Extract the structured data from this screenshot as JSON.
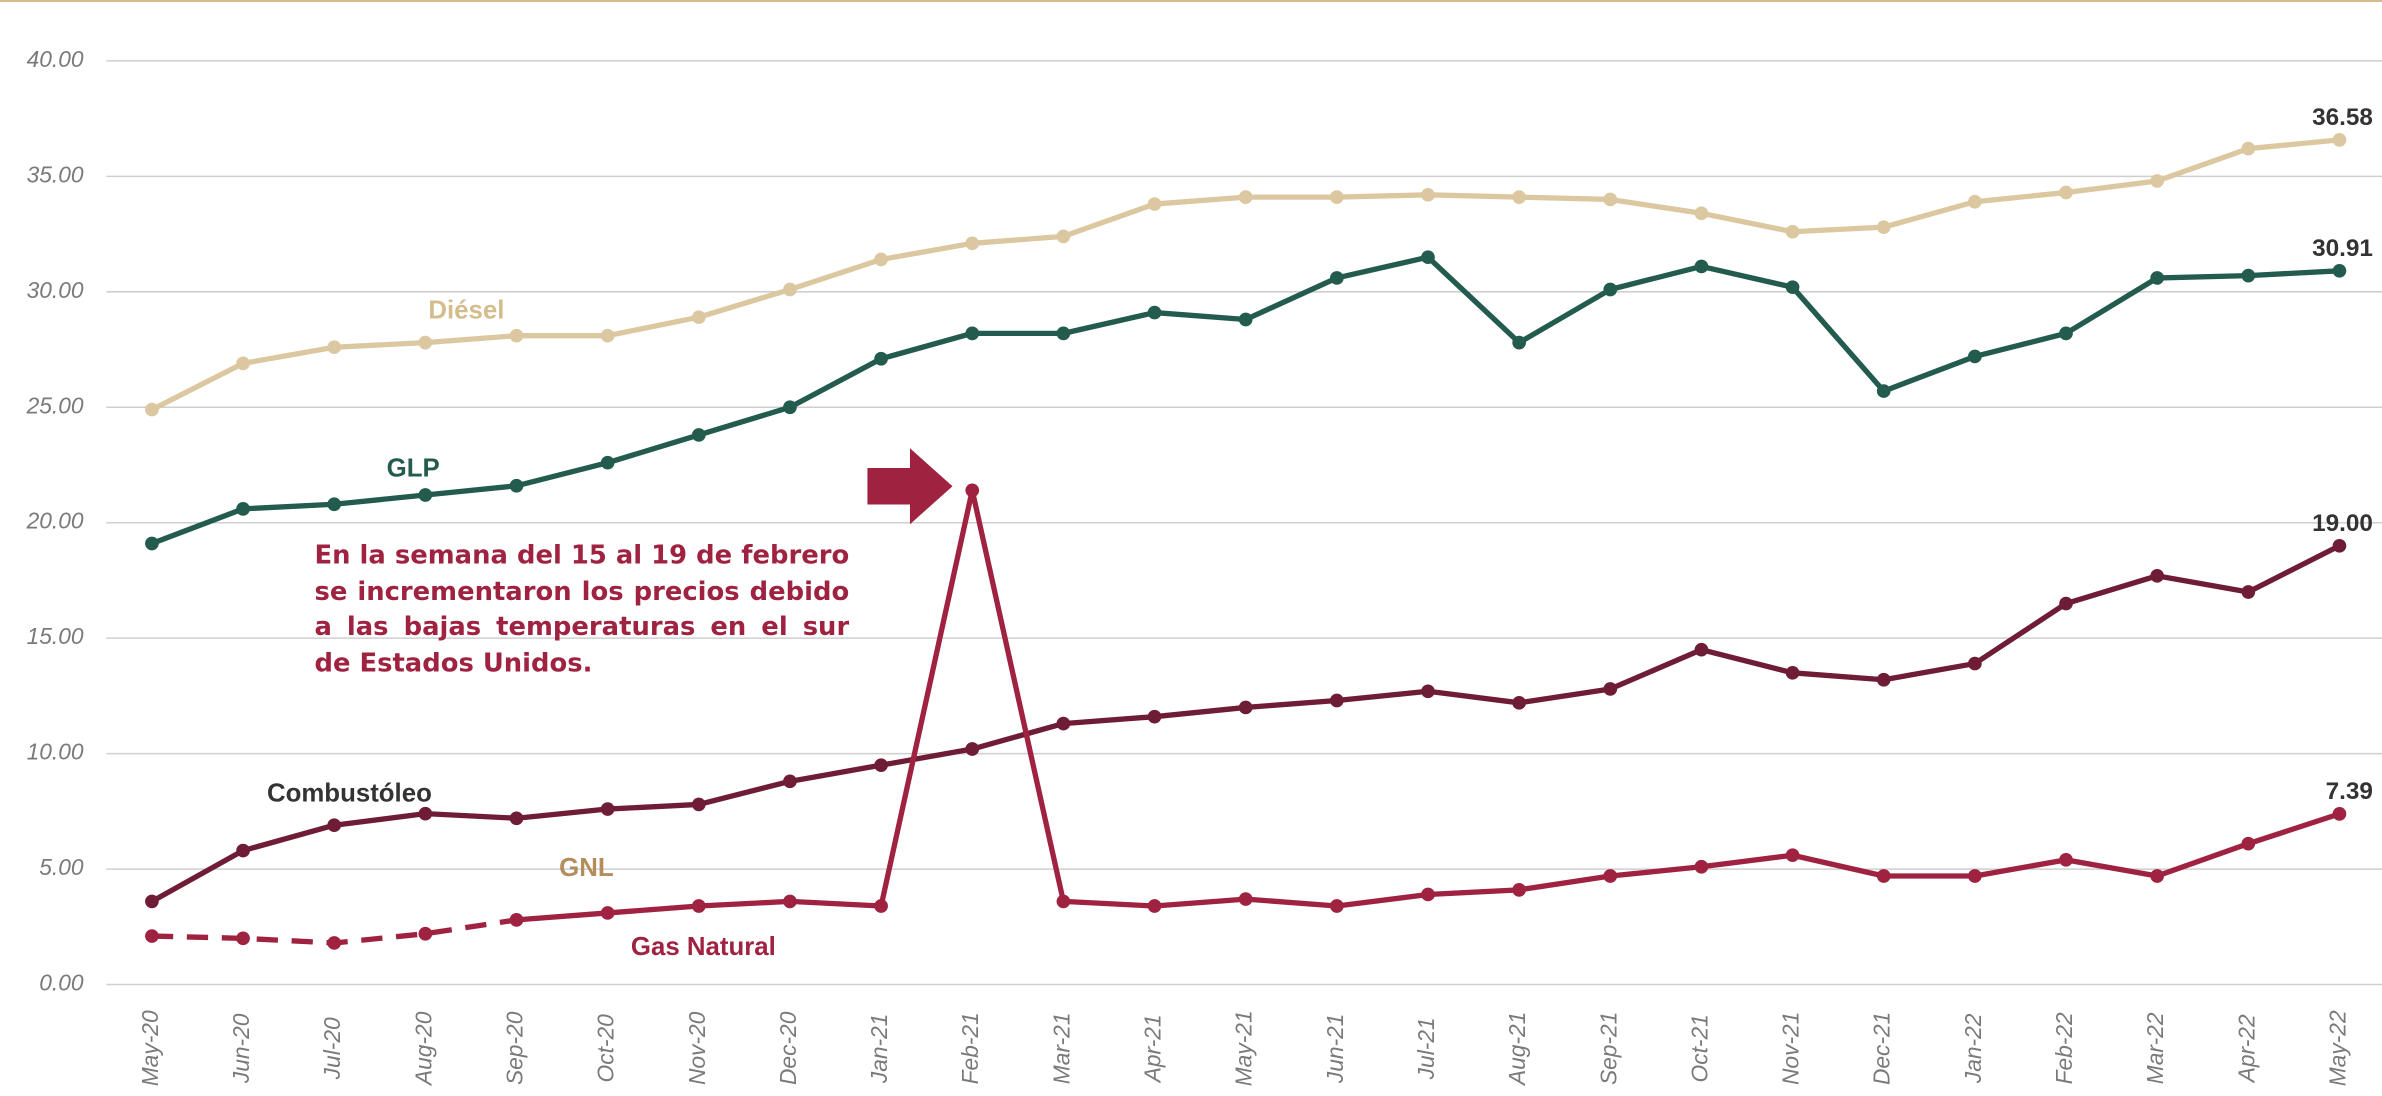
{
  "chart_data": {
    "type": "line",
    "categories": [
      "May-20",
      "Jun-20",
      "Jul-20",
      "Aug-20",
      "Sep-20",
      "Oct-20",
      "Nov-20",
      "Dec-20",
      "Jan-21",
      "Feb-21",
      "Mar-21",
      "Apr-21",
      "May-21",
      "Jun-21",
      "Jul-21",
      "Aug-21",
      "Sep-21",
      "Oct-21",
      "Nov-21",
      "Dec-21",
      "Jan-22",
      "Feb-22",
      "Mar-22",
      "Apr-22",
      "May-22"
    ],
    "ylim": [
      0,
      40
    ],
    "yticks": [
      {
        "value": 0,
        "label": "0.00"
      },
      {
        "value": 5,
        "label": "5.00"
      },
      {
        "value": 10,
        "label": "10.00"
      },
      {
        "value": 15,
        "label": "15.00"
      },
      {
        "value": 20,
        "label": "20.00"
      },
      {
        "value": 25,
        "label": "25.00"
      },
      {
        "value": 30,
        "label": "30.00"
      },
      {
        "value": 35,
        "label": "35.00"
      },
      {
        "value": 40,
        "label": "40.00"
      }
    ],
    "grid": true,
    "series": [
      {
        "name": "Diésel",
        "color": "#dcc8a0",
        "label_color": "#d4bd8c",
        "values": [
          24.9,
          26.9,
          27.6,
          27.8,
          28.1,
          28.1,
          28.9,
          30.1,
          31.4,
          32.1,
          32.4,
          33.8,
          34.1,
          34.1,
          34.2,
          34.1,
          34.0,
          33.4,
          32.6,
          32.8,
          33.9,
          34.3,
          34.8,
          36.2,
          36.58
        ],
        "value_labels": [
          null,
          null,
          null,
          null,
          null,
          null,
          null,
          null,
          null,
          null,
          null,
          null,
          null,
          null,
          null,
          null,
          null,
          null,
          null,
          null,
          null,
          null,
          null,
          null,
          "36.58"
        ]
      },
      {
        "name": "GLP",
        "color": "#235b4e",
        "label_color": "#235b4e",
        "values": [
          19.1,
          20.6,
          20.8,
          21.2,
          21.6,
          22.6,
          23.8,
          25.0,
          27.1,
          28.2,
          28.2,
          29.1,
          28.8,
          30.6,
          31.5,
          27.8,
          30.1,
          31.1,
          30.2,
          25.7,
          27.2,
          28.2,
          30.6,
          30.7,
          30.91
        ],
        "value_labels": [
          null,
          null,
          null,
          null,
          null,
          null,
          null,
          null,
          null,
          null,
          null,
          null,
          null,
          null,
          null,
          null,
          null,
          null,
          null,
          null,
          null,
          null,
          null,
          null,
          "30.91"
        ]
      },
      {
        "name": "Combustóleo",
        "color": "#6f1d36",
        "label_color": "#333333",
        "values": [
          3.6,
          5.8,
          6.9,
          7.4,
          7.2,
          7.6,
          7.8,
          8.8,
          9.5,
          10.2,
          11.3,
          11.6,
          12.0,
          12.3,
          12.7,
          12.2,
          12.8,
          14.5,
          13.5,
          13.2,
          13.9,
          16.5,
          17.7,
          17.0,
          19
        ],
        "value_labels": [
          null,
          null,
          null,
          null,
          null,
          null,
          null,
          null,
          null,
          null,
          null,
          null,
          null,
          null,
          null,
          null,
          null,
          null,
          null,
          null,
          null,
          null,
          null,
          null,
          "19.00"
        ]
      },
      {
        "name": "Gas Natural",
        "color": "#9f2241",
        "label_color": "#9f2241",
        "dashed_through": "Sep-20",
        "values": [
          2.1,
          2.0,
          1.8,
          2.2,
          2.8,
          3.1,
          3.4,
          3.6,
          3.4,
          21.4,
          3.6,
          3.4,
          3.7,
          3.4,
          3.9,
          4.1,
          4.7,
          5.1,
          5.6,
          4.7,
          4.7,
          5.4,
          4.7,
          6.1,
          7.39
        ],
        "value_labels": [
          null,
          null,
          null,
          null,
          null,
          null,
          null,
          null,
          null,
          null,
          null,
          null,
          null,
          null,
          null,
          null,
          null,
          null,
          null,
          null,
          null,
          null,
          null,
          null,
          "7.39"
        ]
      }
    ],
    "labels": [
      "GNL"
    ],
    "annotation": "En la semana del 15 al 19 de febrero se incrementaron los precios debido a las bajas temperaturas en el sur de Estados Unidos."
  }
}
